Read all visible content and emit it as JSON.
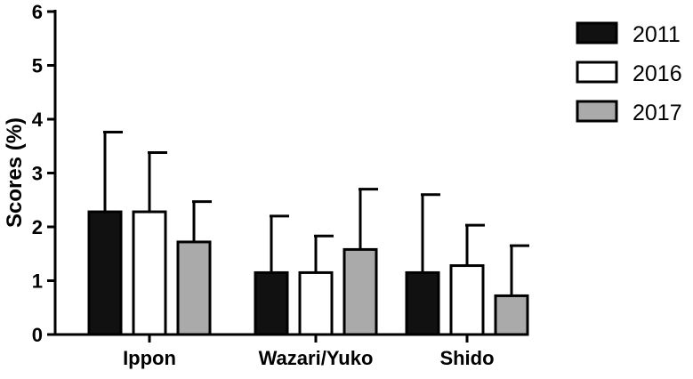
{
  "chart_data": {
    "type": "bar",
    "categories": [
      "Ippon",
      "Wazari/Yuko",
      "Shido"
    ],
    "series": [
      {
        "name": "2011",
        "values": [
          2.28,
          1.15,
          1.15
        ],
        "errors": [
          1.48,
          1.05,
          1.45
        ],
        "color": "#111111"
      },
      {
        "name": "2016",
        "values": [
          2.28,
          1.15,
          1.28
        ],
        "errors": [
          1.1,
          0.68,
          0.75
        ],
        "color": "#ffffff"
      },
      {
        "name": "2017",
        "values": [
          1.72,
          1.58,
          0.72
        ],
        "errors": [
          0.75,
          1.12,
          0.93
        ],
        "color": "#aaaaaa"
      }
    ],
    "title": "",
    "xlabel": "",
    "ylabel": "Scores (%)",
    "ylim": [
      0,
      6
    ],
    "yticks": [
      0,
      1,
      2,
      3,
      4,
      5,
      6
    ],
    "grid": false,
    "legend_position": "top-right",
    "error_bars": "upper"
  }
}
